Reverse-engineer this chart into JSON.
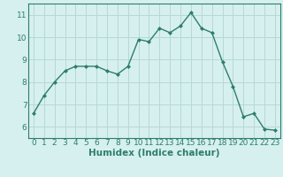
{
  "x": [
    0,
    1,
    2,
    3,
    4,
    5,
    6,
    7,
    8,
    9,
    10,
    11,
    12,
    13,
    14,
    15,
    16,
    17,
    18,
    19,
    20,
    21,
    22,
    23
  ],
  "y": [
    6.6,
    7.4,
    8.0,
    8.5,
    8.7,
    8.7,
    8.7,
    8.5,
    8.35,
    8.7,
    9.9,
    9.8,
    10.4,
    10.2,
    10.5,
    11.1,
    10.4,
    10.2,
    8.9,
    7.8,
    6.45,
    6.6,
    5.9,
    5.85
  ],
  "line_color": "#2e7d6e",
  "marker": "D",
  "marker_size": 2.0,
  "bg_color": "#d6f0ef",
  "grid_color": "#b8d8d4",
  "xlabel": "Humidex (Indice chaleur)",
  "xlim": [
    -0.5,
    23.5
  ],
  "ylim": [
    5.5,
    11.5
  ],
  "yticks": [
    6,
    7,
    8,
    9,
    10,
    11
  ],
  "xticks": [
    0,
    1,
    2,
    3,
    4,
    5,
    6,
    7,
    8,
    9,
    10,
    11,
    12,
    13,
    14,
    15,
    16,
    17,
    18,
    19,
    20,
    21,
    22,
    23
  ],
  "tick_color": "#2e7d6e",
  "label_color": "#2e7d6e",
  "font_size": 6.5,
  "xlabel_size": 7.5,
  "line_width": 1.0,
  "spine_color": "#2e7d6e"
}
